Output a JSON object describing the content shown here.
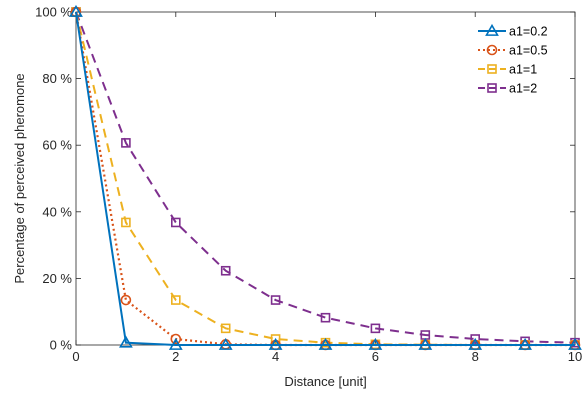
{
  "chart_data": {
    "type": "line",
    "title": "",
    "xlabel": "Distance [unit]",
    "ylabel": "Percentage of perceived pheromone",
    "xlim": [
      0,
      10
    ],
    "ylim": [
      0,
      100
    ],
    "x_ticks": [
      0,
      2,
      4,
      6,
      8,
      10
    ],
    "x_tick_labels": [
      "0",
      "2",
      "4",
      "6",
      "8",
      "10"
    ],
    "y_ticks": [
      0,
      20,
      40,
      60,
      80,
      100
    ],
    "y_tick_labels": [
      "0 %",
      "20 %",
      "40 %",
      "60 %",
      "80 %",
      "100 %"
    ],
    "grid": false,
    "legend_position": "top-right",
    "x": [
      0,
      1,
      2,
      3,
      4,
      5,
      6,
      7,
      8,
      9,
      10
    ],
    "series": [
      {
        "name": "a1=0.2",
        "color": "#0072BD",
        "marker": "triangle",
        "line_style": "solid",
        "values": [
          100,
          0.7,
          0,
          0,
          0,
          0,
          0,
          0,
          0,
          0,
          0
        ]
      },
      {
        "name": "a1=0.5",
        "color": "#D95319",
        "marker": "circle",
        "line_style": "dotted",
        "values": [
          100,
          13.5,
          1.8,
          0.2,
          0,
          0,
          0,
          0,
          0,
          0,
          0
        ]
      },
      {
        "name": "a1=1",
        "color": "#EDB120",
        "marker": "square",
        "line_style": "dashed",
        "values": [
          100,
          36.8,
          13.5,
          5.0,
          1.8,
          0.7,
          0.2,
          0.1,
          0,
          0,
          0
        ]
      },
      {
        "name": "a1=2",
        "color": "#7E2F8E",
        "marker": "square",
        "line_style": "dashed",
        "values": [
          100,
          60.7,
          36.8,
          22.3,
          13.5,
          8.2,
          5.0,
          3.0,
          1.8,
          1.1,
          0.7
        ]
      }
    ]
  }
}
